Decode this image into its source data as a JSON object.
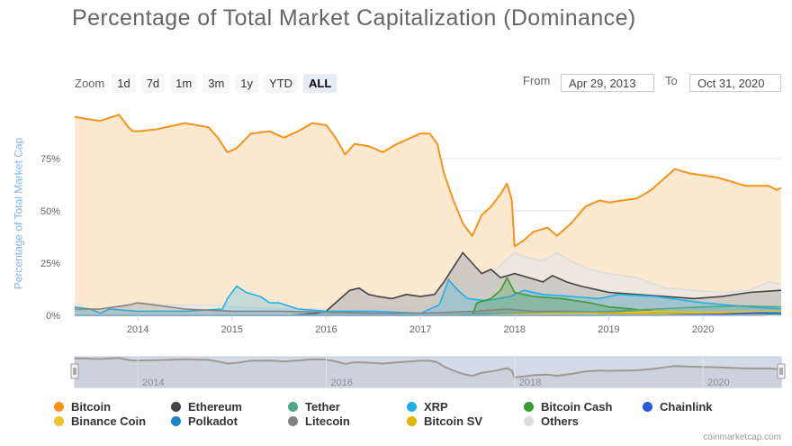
{
  "title": "Percentage of Total Market Capitalization (Dominance)",
  "zoom": {
    "label": "Zoom",
    "buttons": [
      "1d",
      "7d",
      "1m",
      "3m",
      "1y",
      "YTD",
      "ALL"
    ],
    "active": "ALL"
  },
  "range": {
    "from_label": "From",
    "from_value": "Apr 29, 2013",
    "to_label": "To",
    "to_value": "Oct 31, 2020"
  },
  "credit": "coinmarketcap.com",
  "colors": {
    "bitcoin": "#f7931a",
    "bitcoin_fill": "#fde5c8",
    "ethereum": "#434348",
    "tether": "#52a68c",
    "xrp": "#23b0e6",
    "bitcoin_cash": "#3a9a33",
    "chainlink": "#2a5ada",
    "binance_coin": "#f0c22c",
    "polkadot": "#1d84c6",
    "litecoin": "#838383",
    "bitcoin_sv": "#e0b500",
    "others": "#dddddd",
    "navigator_fill": "#d3dae8"
  },
  "chart_data": {
    "type": "area",
    "title": "Percentage of Total Market Capitalization (Dominance)",
    "ylabel": "Percentage of Total Market Cap",
    "xlabel": "",
    "y_ticks": [
      "0%",
      "25%",
      "50%",
      "75%"
    ],
    "y_tick_values": [
      0,
      25,
      50,
      75
    ],
    "ylim": [
      0,
      100
    ],
    "x_ticks": [
      "2014",
      "2015",
      "2016",
      "2017",
      "2018",
      "2019",
      "2020"
    ],
    "x_tick_values": [
      2014.0,
      2015.0,
      2016.0,
      2017.0,
      2018.0,
      2019.0,
      2020.0
    ],
    "xlim": [
      2013.33,
      2020.83
    ],
    "navigator_ticks": [
      "2014",
      "2016",
      "2018",
      "2020"
    ],
    "grid": true,
    "legend": "bottom",
    "series": [
      {
        "name": "Bitcoin",
        "color": "#f7931a",
        "x": [
          2013.33,
          2013.45,
          2013.6,
          2013.8,
          2013.9,
          2013.95,
          2014.0,
          2014.2,
          2014.5,
          2014.75,
          2014.85,
          2014.95,
          2015.05,
          2015.2,
          2015.4,
          2015.55,
          2015.7,
          2015.85,
          2016.0,
          2016.1,
          2016.2,
          2016.3,
          2016.45,
          2016.6,
          2016.75,
          2016.9,
          2017.0,
          2017.1,
          2017.18,
          2017.25,
          2017.35,
          2017.45,
          2017.55,
          2017.65,
          2017.75,
          2017.85,
          2017.92,
          2017.97,
          2018.0,
          2018.1,
          2018.2,
          2018.35,
          2018.45,
          2018.6,
          2018.75,
          2018.9,
          2019.0,
          2019.15,
          2019.3,
          2019.45,
          2019.6,
          2019.7,
          2019.85,
          2020.0,
          2020.15,
          2020.3,
          2020.45,
          2020.6,
          2020.7,
          2020.78,
          2020.83
        ],
        "y": [
          95,
          94,
          93,
          96,
          90,
          88,
          88,
          89,
          92,
          90,
          85,
          78,
          80,
          87,
          88,
          85,
          88,
          92,
          91,
          85,
          77,
          82,
          81,
          78,
          82,
          85,
          87,
          87,
          82,
          68,
          55,
          44,
          38,
          48,
          52,
          58,
          63,
          55,
          33,
          36,
          40,
          42,
          38,
          44,
          52,
          55,
          54,
          55,
          56,
          60,
          66,
          70,
          68,
          67,
          66,
          64,
          62,
          62,
          62,
          60,
          61
        ]
      },
      {
        "name": "Ethereum",
        "color": "#434348",
        "x": [
          2013.33,
          2015.6,
          2015.9,
          2016.0,
          2016.15,
          2016.25,
          2016.35,
          2016.45,
          2016.55,
          2016.7,
          2016.85,
          2017.0,
          2017.15,
          2017.25,
          2017.35,
          2017.45,
          2017.55,
          2017.65,
          2017.75,
          2017.85,
          2018.0,
          2018.15,
          2018.3,
          2018.4,
          2018.55,
          2018.7,
          2018.9,
          2019.0,
          2019.3,
          2019.6,
          2019.9,
          2020.2,
          2020.5,
          2020.83
        ],
        "y": [
          0,
          0,
          1,
          2,
          8,
          12,
          13,
          10,
          9,
          8,
          10,
          9,
          10,
          16,
          23,
          30,
          25,
          20,
          22,
          18,
          20,
          18,
          16,
          19,
          16,
          14,
          12,
          11,
          10,
          9,
          8,
          9,
          11,
          12
        ]
      },
      {
        "name": "Tether",
        "color": "#52a68c",
        "x": [
          2013.33,
          2015.0,
          2016.0,
          2017.0,
          2017.5,
          2018.0,
          2018.5,
          2019.0,
          2019.5,
          2020.0,
          2020.4,
          2020.83
        ],
        "y": [
          0,
          0,
          0,
          0,
          0.5,
          1,
          1.5,
          2,
          3,
          4,
          4.5,
          4
        ]
      },
      {
        "name": "XRP",
        "color": "#23b0e6",
        "x": [
          2013.33,
          2013.5,
          2013.6,
          2013.7,
          2014.0,
          2014.5,
          2014.9,
          2014.95,
          2015.05,
          2015.15,
          2015.3,
          2015.4,
          2015.5,
          2015.7,
          2016.0,
          2016.5,
          2017.0,
          2017.2,
          2017.3,
          2017.4,
          2017.5,
          2017.7,
          2017.95,
          2018.1,
          2018.3,
          2018.6,
          2018.9,
          2019.1,
          2019.5,
          2020.0,
          2020.5,
          2020.83
        ],
        "y": [
          4,
          3,
          1,
          3,
          2,
          2,
          3,
          8,
          14,
          11,
          9,
          6,
          6,
          3,
          2,
          2,
          1,
          5,
          17,
          12,
          8,
          7,
          9,
          12,
          10,
          9,
          8,
          10,
          9,
          6,
          4,
          3
        ]
      },
      {
        "name": "Bitcoin Cash",
        "color": "#3a9a33",
        "x": [
          2013.33,
          2017.55,
          2017.6,
          2017.75,
          2017.85,
          2017.92,
          2018.0,
          2018.2,
          2018.5,
          2018.8,
          2019.0,
          2019.5,
          2020.0,
          2020.83
        ],
        "y": [
          0,
          0,
          6,
          8,
          12,
          18,
          11,
          9,
          8,
          6,
          4,
          2,
          1.5,
          1.3
        ]
      },
      {
        "name": "Chainlink",
        "color": "#2a5ada",
        "x": [
          2013.33,
          2019.5,
          2019.8,
          2020.2,
          2020.6,
          2020.83
        ],
        "y": [
          0,
          0,
          0.3,
          0.5,
          1.2,
          1.1
        ]
      },
      {
        "name": "Binance Coin",
        "color": "#f0c22c",
        "x": [
          2013.33,
          2017.6,
          2018.0,
          2018.5,
          2019.0,
          2019.5,
          2020.0,
          2020.83
        ],
        "y": [
          0,
          0,
          0.5,
          1,
          1,
          2,
          1.5,
          2
        ]
      },
      {
        "name": "Polkadot",
        "color": "#1d84c6",
        "x": [
          2013.33,
          2020.65,
          2020.7,
          2020.83
        ],
        "y": [
          0,
          0,
          0.8,
          0.9
        ]
      },
      {
        "name": "Litecoin",
        "color": "#838383",
        "x": [
          2013.33,
          2013.6,
          2013.9,
          2014.0,
          2014.5,
          2015.0,
          2015.5,
          2016.0,
          2016.5,
          2017.0,
          2017.3,
          2017.6,
          2017.9,
          2018.2,
          2018.6,
          2019.0,
          2019.4,
          2019.8,
          2020.2,
          2020.83
        ],
        "y": [
          3,
          3,
          5,
          6,
          3,
          2,
          2,
          1.5,
          1,
          1,
          1.5,
          2,
          3,
          2,
          2,
          1.5,
          2,
          1.5,
          1.2,
          1
        ]
      },
      {
        "name": "Bitcoin SV",
        "color": "#e0b500",
        "x": [
          2013.33,
          2018.85,
          2018.9,
          2019.3,
          2019.6,
          2020.0,
          2020.3,
          2020.83
        ],
        "y": [
          0,
          0,
          1,
          1,
          0.8,
          1,
          1.2,
          0.8
        ]
      },
      {
        "name": "Others",
        "color": "#dddddd",
        "x": [
          2013.33,
          2013.6,
          2013.9,
          2014.0,
          2014.4,
          2014.8,
          2015.0,
          2015.5,
          2016.0,
          2016.5,
          2017.0,
          2017.2,
          2017.3,
          2017.45,
          2017.6,
          2017.8,
          2017.95,
          2018.0,
          2018.1,
          2018.3,
          2018.45,
          2018.6,
          2018.8,
          2019.0,
          2019.3,
          2019.6,
          2019.9,
          2020.2,
          2020.5,
          2020.7,
          2020.83
        ],
        "y": [
          2,
          3,
          4,
          6,
          5,
          5,
          4,
          3,
          3,
          3,
          3,
          6,
          12,
          16,
          14,
          22,
          28,
          30,
          28,
          26,
          30,
          26,
          22,
          20,
          18,
          13,
          12,
          11,
          12,
          16,
          15
        ]
      }
    ]
  }
}
